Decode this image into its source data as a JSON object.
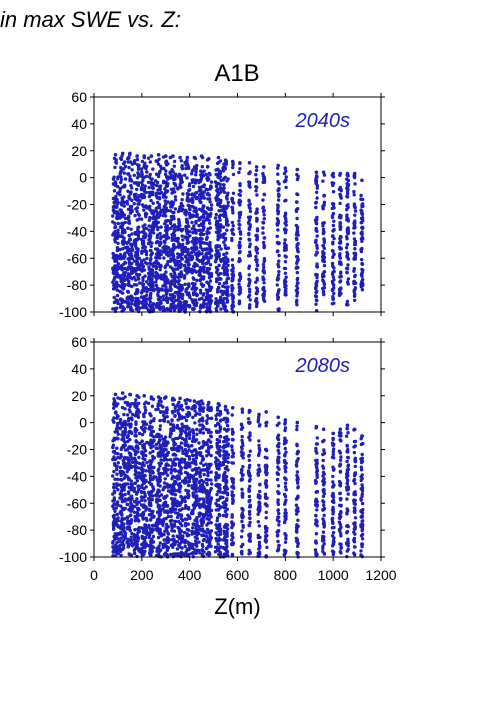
{
  "header_text": "in max SWE vs. Z:",
  "scenario_title": "A1B",
  "point_color": "#1f1fb8",
  "chart_data": [
    {
      "type": "scatter",
      "panel_label": "2040s",
      "xlim": [
        0,
        1200
      ],
      "ylim": [
        -100,
        60
      ],
      "x_ticks": [
        0,
        200,
        400,
        600,
        800,
        1000,
        1200
      ],
      "y_ticks": [
        60,
        40,
        20,
        0,
        -20,
        -40,
        -60,
        -80,
        -100
      ],
      "show_x_tick_labels": false,
      "xlabel": "",
      "ylabel": "",
      "elevation_columns": [
        {
          "x": 90,
          "ymin": -100,
          "ymax": 17
        },
        {
          "x": 120,
          "ymin": -100,
          "ymax": 18
        },
        {
          "x": 150,
          "ymin": -100,
          "ymax": 18
        },
        {
          "x": 180,
          "ymin": -100,
          "ymax": 16
        },
        {
          "x": 210,
          "ymin": -100,
          "ymax": 16
        },
        {
          "x": 240,
          "ymin": -100,
          "ymax": 16
        },
        {
          "x": 270,
          "ymin": -100,
          "ymax": 17
        },
        {
          "x": 300,
          "ymin": -100,
          "ymax": 16
        },
        {
          "x": 330,
          "ymin": -100,
          "ymax": 16
        },
        {
          "x": 360,
          "ymin": -100,
          "ymax": 15
        },
        {
          "x": 390,
          "ymin": -100,
          "ymax": 15
        },
        {
          "x": 420,
          "ymin": -100,
          "ymax": 15
        },
        {
          "x": 450,
          "ymin": -100,
          "ymax": 16
        },
        {
          "x": 480,
          "ymin": -100,
          "ymax": 14
        },
        {
          "x": 520,
          "ymin": -100,
          "ymax": 15
        },
        {
          "x": 550,
          "ymin": -100,
          "ymax": 13
        },
        {
          "x": 580,
          "ymin": -100,
          "ymax": 12
        },
        {
          "x": 610,
          "ymin": -98,
          "ymax": 11
        },
        {
          "x": 650,
          "ymin": -100,
          "ymax": 11
        },
        {
          "x": 680,
          "ymin": -96,
          "ymax": 8
        },
        {
          "x": 710,
          "ymin": -95,
          "ymax": 8
        },
        {
          "x": 770,
          "ymin": -100,
          "ymax": 9
        },
        {
          "x": 800,
          "ymin": -90,
          "ymax": 7
        },
        {
          "x": 850,
          "ymin": -96,
          "ymax": 6
        },
        {
          "x": 930,
          "ymin": -100,
          "ymax": 4
        },
        {
          "x": 960,
          "ymin": -90,
          "ymax": 4
        },
        {
          "x": 1000,
          "ymin": -95,
          "ymax": 3
        },
        {
          "x": 1030,
          "ymin": -88,
          "ymax": 3
        },
        {
          "x": 1060,
          "ymin": -96,
          "ymax": 3
        },
        {
          "x": 1090,
          "ymin": -92,
          "ymax": 3
        },
        {
          "x": 1120,
          "ymin": -85,
          "ymax": -2
        }
      ]
    },
    {
      "type": "scatter",
      "panel_label": "2080s",
      "xlim": [
        0,
        1200
      ],
      "ylim": [
        -100,
        60
      ],
      "x_ticks": [
        0,
        200,
        400,
        600,
        800,
        1000,
        1200
      ],
      "y_ticks": [
        60,
        40,
        20,
        0,
        -20,
        -40,
        -60,
        -80,
        -100
      ],
      "show_x_tick_labels": true,
      "xlabel": "Z(m)",
      "ylabel": "",
      "elevation_columns": [
        {
          "x": 90,
          "ymin": -100,
          "ymax": 21
        },
        {
          "x": 120,
          "ymin": -100,
          "ymax": 22
        },
        {
          "x": 150,
          "ymin": -100,
          "ymax": 21
        },
        {
          "x": 180,
          "ymin": -100,
          "ymax": 20
        },
        {
          "x": 210,
          "ymin": -100,
          "ymax": 20
        },
        {
          "x": 240,
          "ymin": -100,
          "ymax": 19
        },
        {
          "x": 270,
          "ymin": -100,
          "ymax": 19
        },
        {
          "x": 300,
          "ymin": -100,
          "ymax": 19
        },
        {
          "x": 330,
          "ymin": -100,
          "ymax": 18
        },
        {
          "x": 360,
          "ymin": -100,
          "ymax": 18
        },
        {
          "x": 390,
          "ymin": -100,
          "ymax": 17
        },
        {
          "x": 420,
          "ymin": -100,
          "ymax": 16
        },
        {
          "x": 450,
          "ymin": -100,
          "ymax": 16
        },
        {
          "x": 480,
          "ymin": -100,
          "ymax": 15
        },
        {
          "x": 520,
          "ymin": -100,
          "ymax": 14
        },
        {
          "x": 550,
          "ymin": -100,
          "ymax": 12
        },
        {
          "x": 580,
          "ymin": -100,
          "ymax": 11
        },
        {
          "x": 620,
          "ymin": -100,
          "ymax": 10
        },
        {
          "x": 650,
          "ymin": -100,
          "ymax": 9
        },
        {
          "x": 690,
          "ymin": -100,
          "ymax": 6
        },
        {
          "x": 720,
          "ymin": -100,
          "ymax": 8
        },
        {
          "x": 770,
          "ymin": -100,
          "ymax": 4
        },
        {
          "x": 800,
          "ymin": -100,
          "ymax": 2
        },
        {
          "x": 850,
          "ymin": -100,
          "ymax": 0
        },
        {
          "x": 930,
          "ymin": -100,
          "ymax": -3
        },
        {
          "x": 960,
          "ymin": -100,
          "ymax": -5
        },
        {
          "x": 1000,
          "ymin": -100,
          "ymax": -8
        },
        {
          "x": 1030,
          "ymin": -100,
          "ymax": -5
        },
        {
          "x": 1060,
          "ymin": -100,
          "ymax": -2
        },
        {
          "x": 1090,
          "ymin": -100,
          "ymax": -5
        },
        {
          "x": 1120,
          "ymin": -100,
          "ymax": -10
        }
      ]
    }
  ]
}
